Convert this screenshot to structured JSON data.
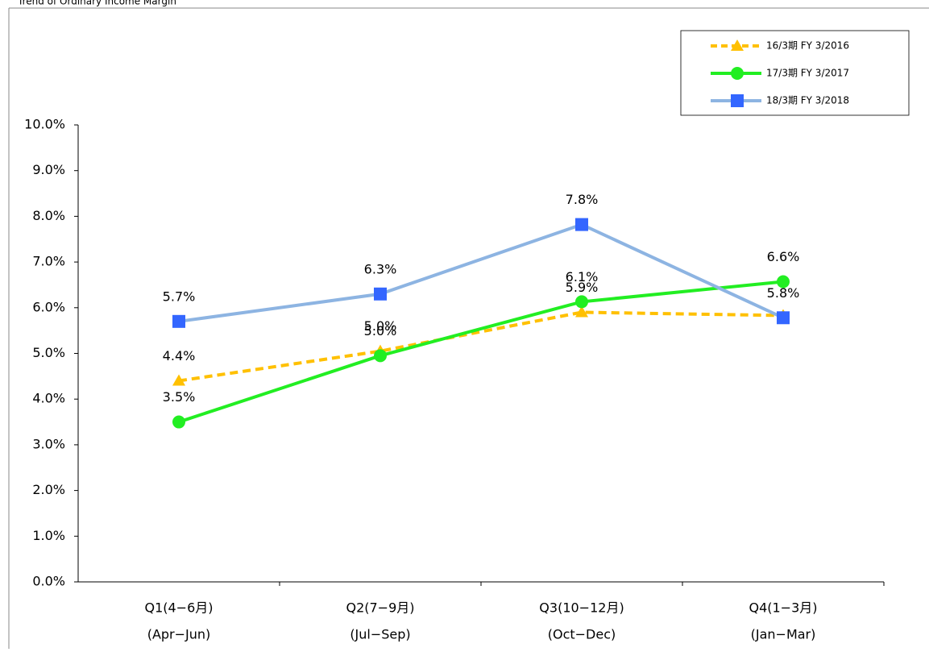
{
  "chart_data": {
    "type": "line",
    "title": "Trend of Ordinary Income Margin",
    "categories": [
      "Q1(4−6月)",
      "Q2(7−9月)",
      "Q3(10−12月)",
      "Q4(1−3月)"
    ],
    "category_sublabels": [
      "(Apr−Jun)",
      "(Jul−Sep)",
      "(Oct−Dec)",
      "(Jan−Mar)"
    ],
    "ylim": [
      0,
      10
    ],
    "yticks": [
      {
        "value": 0,
        "label": "0.0%"
      },
      {
        "value": 1,
        "label": "1.0%"
      },
      {
        "value": 2,
        "label": "2.0%"
      },
      {
        "value": 3,
        "label": "3.0%"
      },
      {
        "value": 4,
        "label": "4.0%"
      },
      {
        "value": 5,
        "label": "5.0%"
      },
      {
        "value": 6,
        "label": "6.0%"
      },
      {
        "value": 7,
        "label": "7.0%"
      },
      {
        "value": 8,
        "label": "8.0%"
      },
      {
        "value": 9,
        "label": "9.0%"
      },
      {
        "value": 10,
        "label": "10.0%"
      }
    ],
    "legend": "top-right",
    "series": [
      {
        "name": "16/3期  FY 3/2016",
        "color": "#ffc000",
        "dashed": true,
        "marker": "triangle",
        "values": [
          4.4,
          5.05,
          5.9,
          5.83
        ],
        "value_labels": [
          "4.4%",
          "5.0%",
          "5.9%",
          null
        ]
      },
      {
        "name": "17/3期  FY 3/2017",
        "color": "#22ee22",
        "marker": "circle",
        "values": [
          3.5,
          4.95,
          6.13,
          6.57
        ],
        "value_labels": [
          "3.5%",
          "5.0%",
          "6.1%",
          "6.6%"
        ]
      },
      {
        "name": "18/3期  FY 3/2018",
        "color": "#8db4e2",
        "marker_color": "#3366ff",
        "marker": "square",
        "values": [
          5.7,
          6.3,
          7.82,
          5.78
        ],
        "value_labels": [
          "5.7%",
          "6.3%",
          "7.8%",
          "5.8%"
        ]
      }
    ]
  }
}
